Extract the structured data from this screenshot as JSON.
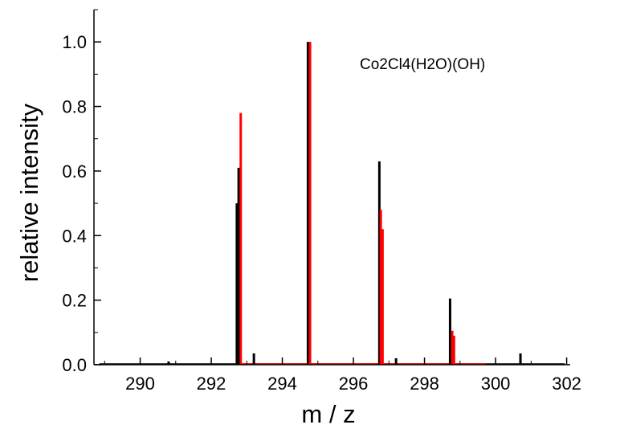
{
  "chart_data": {
    "type": "bar",
    "annotation": "Co2Cl4(H2O)(OH)",
    "xlabel": "m / z",
    "ylabel": "relative intensity",
    "xlim": [
      288.7,
      302.1
    ],
    "ylim": [
      0,
      1.1
    ],
    "x_ticks": [
      290,
      292,
      294,
      296,
      298,
      300,
      302
    ],
    "x_tick_labels": [
      "290",
      "292",
      "294",
      "296",
      "298",
      "300",
      "302"
    ],
    "y_ticks": [
      0.0,
      0.2,
      0.4,
      0.6,
      0.8,
      1.0
    ],
    "y_tick_labels": [
      "0.0",
      "0.2",
      "0.4",
      "0.6",
      "0.8",
      "1.0"
    ],
    "grid": false,
    "series": [
      {
        "color": "#000000",
        "peaks": [
          {
            "x": 290.8,
            "y": 0.01
          },
          {
            "x": 292.72,
            "y": 0.5
          },
          {
            "x": 292.77,
            "y": 0.61
          },
          {
            "x": 293.2,
            "y": 0.035
          },
          {
            "x": 294.72,
            "y": 1.0
          },
          {
            "x": 296.73,
            "y": 0.63
          },
          {
            "x": 297.2,
            "y": 0.02
          },
          {
            "x": 298.72,
            "y": 0.205
          },
          {
            "x": 300.7,
            "y": 0.035
          }
        ]
      },
      {
        "color": "#ff0000",
        "peaks": [
          {
            "x": 292.83,
            "y": 0.78
          },
          {
            "x": 294.78,
            "y": 1.0
          },
          {
            "x": 296.77,
            "y": 0.48
          },
          {
            "x": 296.82,
            "y": 0.42
          },
          {
            "x": 298.78,
            "y": 0.105
          },
          {
            "x": 298.83,
            "y": 0.09
          }
        ]
      }
    ]
  }
}
